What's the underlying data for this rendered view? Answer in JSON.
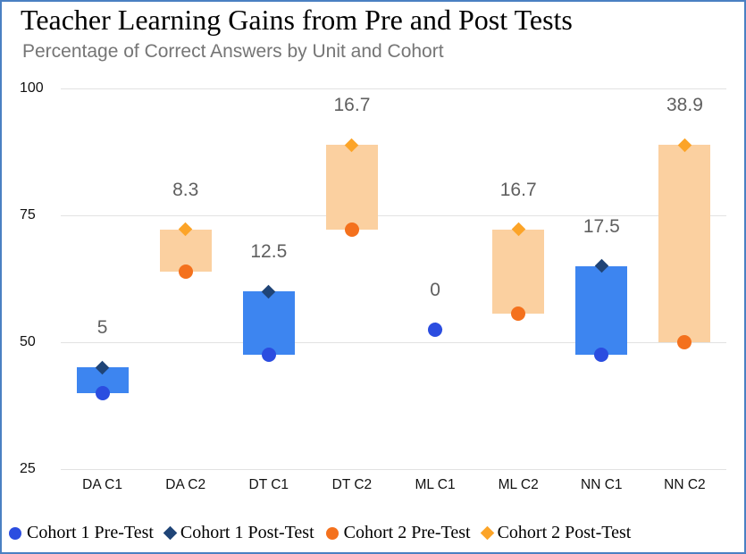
{
  "chart_data": {
    "type": "bar",
    "subtype": "floating-range-bars-with-point-markers",
    "title": "Teacher Learning Gains from Pre and Post Tests",
    "subtitle": "Percentage of Correct Answers by Unit and Cohort",
    "categories": [
      "DA C1",
      "DA C2",
      "DT C1",
      "DT C2",
      "ML C1",
      "ML C2",
      "NN C1",
      "NN C2"
    ],
    "ylim": [
      25,
      100
    ],
    "y_ticks": [
      100,
      75,
      50,
      25
    ],
    "grid": true,
    "legend_position": "bottom",
    "points": [
      {
        "category": "DA C1",
        "cohort": 1,
        "pre": 40,
        "post": 45,
        "gain_label": "5"
      },
      {
        "category": "DA C2",
        "cohort": 2,
        "pre": 63.9,
        "post": 72.2,
        "gain_label": "8.3"
      },
      {
        "category": "DT C1",
        "cohort": 1,
        "pre": 47.5,
        "post": 60,
        "gain_label": "12.5"
      },
      {
        "category": "DT C2",
        "cohort": 2,
        "pre": 72.2,
        "post": 88.9,
        "gain_label": "16.7"
      },
      {
        "category": "ML C1",
        "cohort": 1,
        "pre": 52.5,
        "post": 52.5,
        "gain_label": "0"
      },
      {
        "category": "ML C2",
        "cohort": 2,
        "pre": 55.6,
        "post": 72.2,
        "gain_label": "16.7"
      },
      {
        "category": "NN C1",
        "cohort": 1,
        "pre": 47.5,
        "post": 65,
        "gain_label": "17.5"
      },
      {
        "category": "NN C2",
        "cohort": 2,
        "pre": 50,
        "post": 88.9,
        "gain_label": "38.9"
      }
    ],
    "legend": [
      {
        "label": "Cohort 1 Pre-Test",
        "marker": "circle",
        "color": "#2b4de0"
      },
      {
        "label": "Cohort 1 Post-Test",
        "marker": "diamond",
        "color": "#1f4477"
      },
      {
        "label": "Cohort 2 Pre-Test",
        "marker": "circle",
        "color": "#f4711d"
      },
      {
        "label": "Cohort 2 Post-Test",
        "marker": "diamond",
        "color": "#fca428"
      }
    ],
    "colors": {
      "cohort1_bar": "#3d85f0",
      "cohort1_pre": "#2b4de0",
      "cohort1_post": "#1f4477",
      "cohort2_bar": "#fbd0a0",
      "cohort2_pre": "#f4711d",
      "cohort2_post": "#fca428",
      "gridline": "#e2e2e2",
      "gain_label": "#5f5f5f",
      "axis_label": "#111111",
      "subtitle": "#757575",
      "frame_border": "#4a80c2"
    }
  }
}
